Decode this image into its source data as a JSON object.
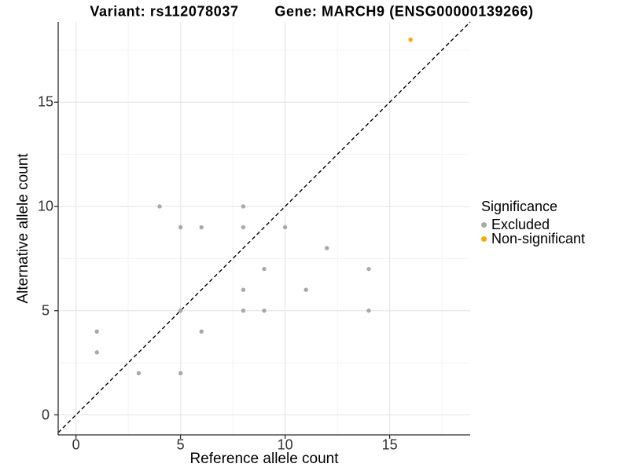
{
  "header": {
    "title_left": "Variant: rs112078037",
    "title_right": "Gene: MARCH9 (ENSG00000139266)"
  },
  "chart_data": {
    "type": "scatter",
    "title": "Variant: rs112078037   Gene: MARCH9 (ENSG00000139266)",
    "xlabel": "Reference allele count",
    "ylabel": "Alternative allele count",
    "xlim": [
      -0.85,
      18.85
    ],
    "ylim": [
      -0.96,
      18.85
    ],
    "x_ticks": [
      0,
      5,
      10,
      15
    ],
    "y_ticks": [
      0,
      5,
      10,
      15
    ],
    "x_tick_labels": [
      "0",
      "5",
      "10",
      "15"
    ],
    "y_tick_labels": [
      "0",
      "5",
      "10",
      "15"
    ],
    "minor_gridlines": [
      2.5,
      7.5,
      12.5,
      17.5
    ],
    "grid": "major+minor",
    "identity_line": {
      "type": "dashed",
      "equation": "y = x",
      "color": "#000000"
    },
    "legend": {
      "title": "Significance",
      "position": "right"
    },
    "series": [
      {
        "name": "Excluded",
        "color": "#a8a8a8",
        "points": [
          [
            1,
            3
          ],
          [
            1,
            4
          ],
          [
            3,
            2
          ],
          [
            4,
            10
          ],
          [
            5,
            2
          ],
          [
            5,
            5
          ],
          [
            5,
            9
          ],
          [
            6,
            4
          ],
          [
            6,
            9
          ],
          [
            8,
            5
          ],
          [
            8,
            6
          ],
          [
            8,
            9
          ],
          [
            8,
            10
          ],
          [
            9,
            5
          ],
          [
            9,
            7
          ],
          [
            10,
            9
          ],
          [
            11,
            6
          ],
          [
            12,
            8
          ],
          [
            14,
            5
          ],
          [
            14,
            7
          ]
        ]
      },
      {
        "name": "Non-significant",
        "color": "#FFA500",
        "points": [
          [
            16,
            18
          ]
        ]
      }
    ],
    "colors": {
      "major_grid": "#e7e7e7",
      "minor_grid": "#f2f2f2",
      "axis_line": "#2b2b2b",
      "tick_text": "#303030"
    }
  }
}
